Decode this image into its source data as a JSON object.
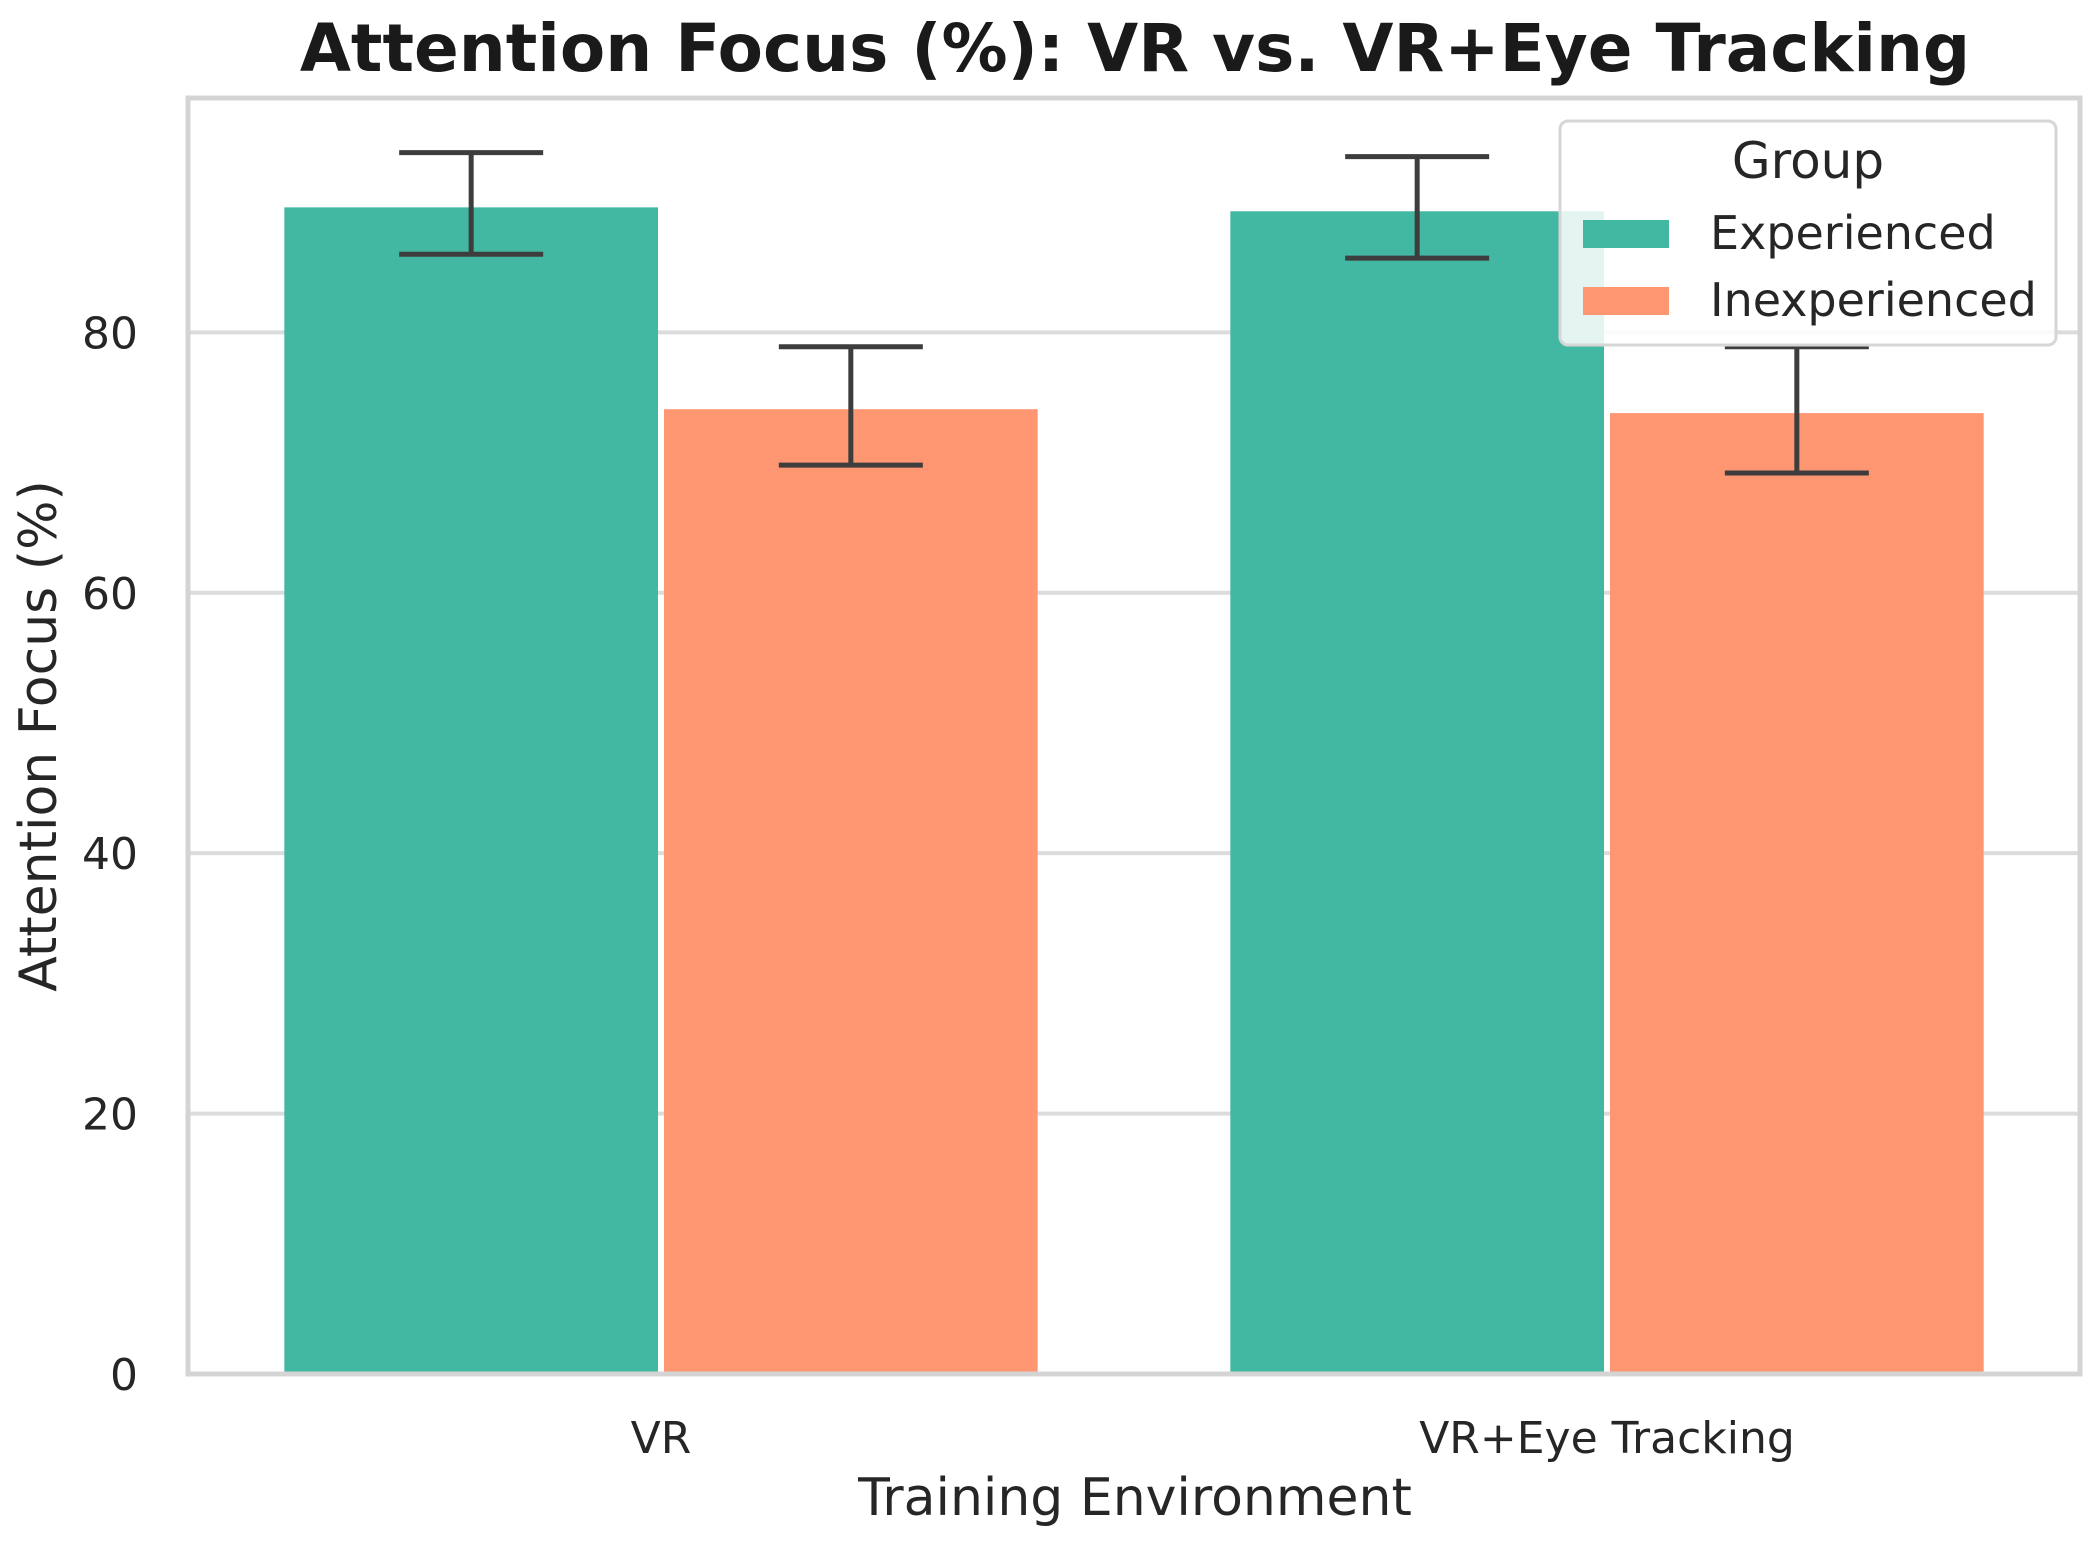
{
  "chart_data": {
    "type": "bar",
    "title": "Attention Focus (%): VR vs. VR+Eye Tracking",
    "xlabel": "Training Environment",
    "ylabel": "Attention Focus (%)",
    "categories": [
      "VR",
      "VR+Eye Tracking"
    ],
    "ylim": [
      0,
      98
    ],
    "yticks": [
      0,
      20,
      40,
      60,
      80
    ],
    "grid": true,
    "legend": {
      "title": "Group",
      "placement": "top-right"
    },
    "series": [
      {
        "name": "Experienced",
        "color": "#42b7a2",
        "values": [
          89.6,
          89.3
        ],
        "error": [
          [
            86.0,
            93.8
          ],
          [
            85.7,
            93.5
          ]
        ]
      },
      {
        "name": "Inexperienced",
        "color": "#fe9672",
        "values": [
          74.1,
          73.8
        ],
        "error": [
          [
            69.8,
            78.9
          ],
          [
            69.2,
            78.9
          ]
        ]
      }
    ]
  }
}
